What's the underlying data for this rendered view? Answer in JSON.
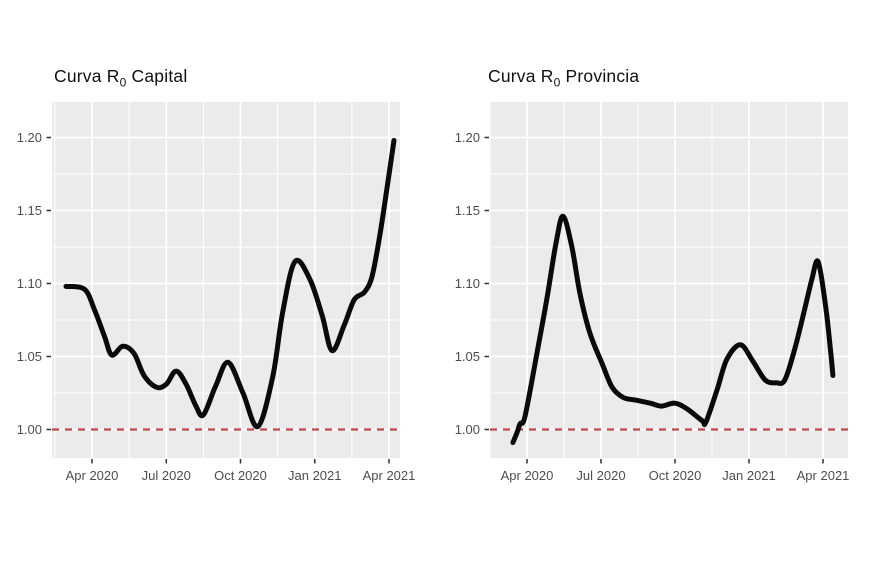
{
  "page": {
    "background": "#FFFFFF",
    "figure_kind": "two ggplot-style R0 epidemic curve panels"
  },
  "chart_data": [
    {
      "type": "line",
      "title": {
        "prefix": "Curva R",
        "sub": "0",
        "suffix": " Capital"
      },
      "title_full": "Curva R0 Capital",
      "panel_bg": "#EBEBEB",
      "grid_color": "#FFFFFF",
      "line_color": "#0A0A0A",
      "axis_label_color": "#4D4D4D",
      "tick_mark_color": "#333333",
      "x_unit": "months since 2020-04-01",
      "x_ticks": [
        {
          "label": "Apr 2020",
          "t": 0
        },
        {
          "label": "Jul 2020",
          "t": 3
        },
        {
          "label": "Oct 2020",
          "t": 6
        },
        {
          "label": "Jan 2021",
          "t": 9
        },
        {
          "label": "Apr 2021",
          "t": 12
        }
      ],
      "x_minor_t": [
        -1.5,
        1.5,
        4.5,
        7.5,
        10.5
      ],
      "y_ticks": [
        {
          "label": "1.00",
          "v": 1.0
        },
        {
          "label": "1.05",
          "v": 1.05
        },
        {
          "label": "1.10",
          "v": 1.1
        },
        {
          "label": "1.15",
          "v": 1.15
        },
        {
          "label": "1.20",
          "v": 1.2
        }
      ],
      "y_minor_v": [
        1.025,
        1.075,
        1.125,
        1.175
      ],
      "ylim": [
        0.9805,
        1.2245
      ],
      "grid": true,
      "legend": "none",
      "reference_line": {
        "v": 1.0,
        "color": "#C0484E",
        "style": "dashed"
      },
      "series": [
        {
          "name": "R0 Capital",
          "points": [
            [
              -1.05,
              1.098
            ],
            [
              -0.3,
              1.096
            ],
            [
              0.1,
              1.082
            ],
            [
              0.5,
              1.064
            ],
            [
              0.8,
              1.051
            ],
            [
              1.25,
              1.057
            ],
            [
              1.7,
              1.052
            ],
            [
              2.1,
              1.037
            ],
            [
              2.6,
              1.029
            ],
            [
              3.0,
              1.031
            ],
            [
              3.4,
              1.04
            ],
            [
              3.8,
              1.031
            ],
            [
              4.2,
              1.016
            ],
            [
              4.5,
              1.01
            ],
            [
              5.0,
              1.03
            ],
            [
              5.5,
              1.046
            ],
            [
              6.1,
              1.025
            ],
            [
              6.7,
              1.002
            ],
            [
              7.3,
              1.036
            ],
            [
              7.7,
              1.08
            ],
            [
              8.2,
              1.115
            ],
            [
              8.8,
              1.103
            ],
            [
              9.3,
              1.078
            ],
            [
              9.7,
              1.054
            ],
            [
              10.2,
              1.072
            ],
            [
              10.6,
              1.089
            ],
            [
              11.0,
              1.094
            ],
            [
              11.3,
              1.104
            ],
            [
              11.6,
              1.13
            ],
            [
              11.9,
              1.163
            ],
            [
              12.2,
              1.198
            ]
          ]
        }
      ]
    },
    {
      "type": "line",
      "title": {
        "prefix": "Curva R",
        "sub": "0",
        "suffix": " Provincia"
      },
      "title_full": "Curva R0 Provincia",
      "panel_bg": "#EBEBEB",
      "grid_color": "#FFFFFF",
      "line_color": "#0A0A0A",
      "axis_label_color": "#4D4D4D",
      "tick_mark_color": "#333333",
      "x_unit": "months since 2020-04-01",
      "x_ticks": [
        {
          "label": "Apr 2020",
          "t": 0
        },
        {
          "label": "Jul 2020",
          "t": 3
        },
        {
          "label": "Oct 2020",
          "t": 6
        },
        {
          "label": "Jan 2021",
          "t": 9
        },
        {
          "label": "Apr 2021",
          "t": 12
        }
      ],
      "x_minor_t": [
        -1.5,
        1.5,
        4.5,
        7.5,
        10.5
      ],
      "y_ticks": [
        {
          "label": "1.00",
          "v": 1.0
        },
        {
          "label": "1.05",
          "v": 1.05
        },
        {
          "label": "1.10",
          "v": 1.1
        },
        {
          "label": "1.15",
          "v": 1.15
        },
        {
          "label": "1.20",
          "v": 1.2
        }
      ],
      "y_minor_v": [
        1.025,
        1.075,
        1.125,
        1.175
      ],
      "ylim": [
        0.9805,
        1.2245
      ],
      "grid": true,
      "legend": "none",
      "reference_line": {
        "v": 1.0,
        "color": "#C0484E",
        "style": "dashed"
      },
      "series": [
        {
          "name": "R0 Provincia",
          "points": [
            [
              -0.57,
              0.991
            ],
            [
              -0.4,
              0.998
            ],
            [
              -0.28,
              1.004
            ],
            [
              -0.08,
              1.009
            ],
            [
              0.4,
              1.052
            ],
            [
              0.81,
              1.09
            ],
            [
              1.18,
              1.128
            ],
            [
              1.46,
              1.146
            ],
            [
              1.82,
              1.125
            ],
            [
              2.15,
              1.093
            ],
            [
              2.55,
              1.066
            ],
            [
              3.05,
              1.045
            ],
            [
              3.45,
              1.029
            ],
            [
              3.9,
              1.022
            ],
            [
              4.45,
              1.02
            ],
            [
              5.0,
              1.018
            ],
            [
              5.45,
              1.016
            ],
            [
              6.0,
              1.018
            ],
            [
              6.5,
              1.014
            ],
            [
              7.1,
              1.006
            ],
            [
              7.25,
              1.005
            ],
            [
              7.7,
              1.027
            ],
            [
              8.1,
              1.048
            ],
            [
              8.65,
              1.058
            ],
            [
              9.15,
              1.047
            ],
            [
              9.65,
              1.034
            ],
            [
              10.1,
              1.032
            ],
            [
              10.45,
              1.034
            ],
            [
              10.85,
              1.055
            ],
            [
              11.25,
              1.082
            ],
            [
              11.55,
              1.103
            ],
            [
              11.8,
              1.115
            ],
            [
              12.1,
              1.085
            ],
            [
              12.3,
              1.055
            ],
            [
              12.4,
              1.037
            ]
          ]
        }
      ]
    }
  ]
}
